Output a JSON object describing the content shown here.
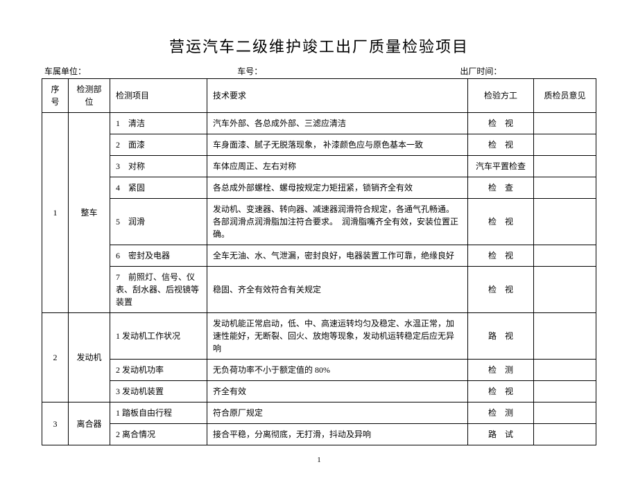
{
  "title": "营运汽车二级维护竣工出厂质量检验项目",
  "meta": {
    "unit_label": "车属单位：",
    "plate_label": "车号：",
    "ex_time_label": "出厂时间："
  },
  "headers": {
    "seq": "序号",
    "part": "检测部位",
    "item": "检测项目",
    "req": "技术要求",
    "method": "检验方工",
    "opinion": "质检员意见"
  },
  "sections": [
    {
      "seq": "1",
      "part": "整车",
      "rows": [
        {
          "item": "1　清洁",
          "req": "汽车外部、各总成外部、三滤应清洁",
          "method": "检　视"
        },
        {
          "item": "2　面漆",
          "req": "车身面漆、腻子无脱落现象， 补漆颜色应与原色基本一致",
          "method": "检　视"
        },
        {
          "item": "3　对称",
          "req": "车体应周正、左右对称",
          "method": "汽车平置检查"
        },
        {
          "item": "4　紧固",
          "req": "各总成外部螺栓、螺母按规定力矩扭紧，锁销齐全有效",
          "method": "检　查"
        },
        {
          "item": "5　润滑",
          "req": "发动机、变速器、转向器、减速器润滑符合规定，各通气孔畅通。各部润滑点润滑脂加注符合要求。　润滑脂嘴齐全有效，安装位置正确。",
          "method": "检　视"
        },
        {
          "item": "6　密封及电器",
          "req": "全车无油、水、气泄漏，密封良好，电器装置工作可靠，绝缘良好",
          "method": "检　视"
        },
        {
          "item": "7　前照灯、信号、仪表、刮水器、后视镜等装置",
          "req": "稳固、齐全有效符合有关规定",
          "method": "检　视"
        }
      ]
    },
    {
      "seq": "2",
      "part": "发动机",
      "rows": [
        {
          "item": "1 发动机工作状况",
          "req": "发动机能正常启动，低、中、高速运转均匀及稳定、水温正常，加速性能好，无断裂、回火、放炮等现象，发动机运转稳定后应无异响",
          "method": "路　视"
        },
        {
          "item": "2 发动机功率",
          "req": "无负荷功率不小于额定值的 80%",
          "method": "检　测"
        },
        {
          "item": "3 发动机装置",
          "req": "齐全有效",
          "method": "检　视"
        }
      ]
    },
    {
      "seq": "3",
      "part": "离合器",
      "rows": [
        {
          "item": "1 踏板自由行程",
          "req": "符合原厂规定",
          "method": "检　测"
        },
        {
          "item": "2 离合情况",
          "req": "接合平稳，分离彻底，无打滑，抖动及异响",
          "method": "路　试"
        }
      ]
    }
  ],
  "pagenum": "1",
  "style": {
    "bg": "#ffffff",
    "border": "#000000",
    "text": "#000000",
    "title_fontsize": 22,
    "body_fontsize": 12
  }
}
